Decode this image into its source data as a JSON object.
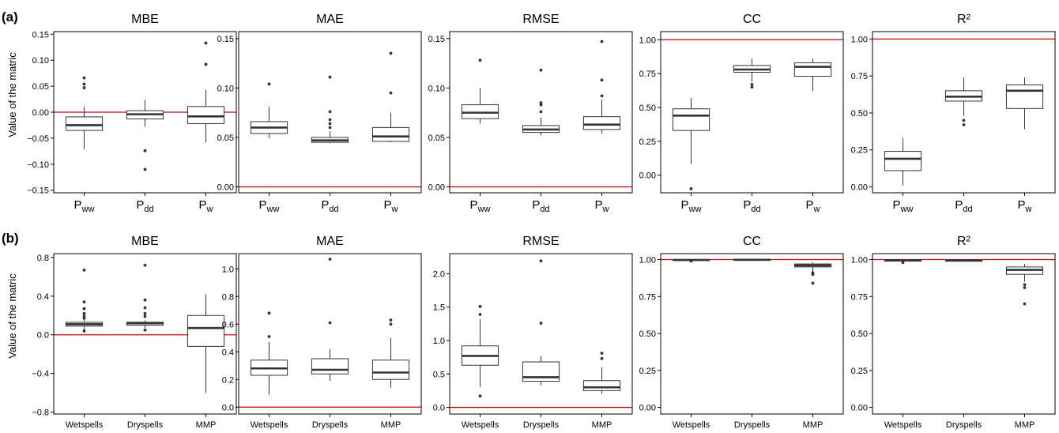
{
  "figure": {
    "row_labels": [
      "(a)",
      "(b)"
    ],
    "ylabel": "Value of the matric"
  },
  "chart_data": [
    {
      "type": "box",
      "row": "(a)",
      "title": "MBE",
      "categories": [
        "P_ww",
        "P_dd",
        "P_w"
      ],
      "ylim": [
        -0.155,
        0.155
      ],
      "yticks": [
        -0.15,
        -0.1,
        -0.05,
        0.0,
        0.05,
        0.1,
        0.15
      ],
      "ytick_labels": [
        "−0.15",
        "−0.10",
        "−0.05",
        "0.00",
        "0.05",
        "0.10",
        "0.15"
      ],
      "reference_line": 0,
      "boxes": [
        {
          "lower_whisker": -0.071,
          "q1": -0.035,
          "median": -0.025,
          "q3": -0.009,
          "upper_whisker": 0.01,
          "outliers": [
            0.047,
            0.054,
            0.066
          ]
        },
        {
          "lower_whisker": -0.028,
          "q1": -0.013,
          "median": -0.004,
          "q3": 0.003,
          "upper_whisker": 0.024,
          "outliers": [
            -0.074,
            -0.11
          ]
        },
        {
          "lower_whisker": -0.058,
          "q1": -0.022,
          "median": -0.008,
          "q3": 0.011,
          "upper_whisker": 0.043,
          "outliers": [
            0.092,
            0.133
          ]
        }
      ]
    },
    {
      "type": "box",
      "row": "(a)",
      "title": "MAE",
      "categories": [
        "P_ww",
        "P_dd",
        "P_w"
      ],
      "ylim": [
        -0.006,
        0.157
      ],
      "yticks": [
        0.0,
        0.05,
        0.1,
        0.15
      ],
      "ytick_labels": [
        "0.00",
        "0.05",
        "0.10",
        "0.15"
      ],
      "reference_line": 0,
      "boxes": [
        {
          "lower_whisker": 0.049,
          "q1": 0.054,
          "median": 0.06,
          "q3": 0.066,
          "upper_whisker": 0.081,
          "outliers": [
            0.104
          ]
        },
        {
          "lower_whisker": 0.044,
          "q1": 0.045,
          "median": 0.047,
          "q3": 0.05,
          "upper_whisker": 0.056,
          "outliers": [
            0.06,
            0.064,
            0.068,
            0.076,
            0.111
          ]
        },
        {
          "lower_whisker": 0.045,
          "q1": 0.046,
          "median": 0.051,
          "q3": 0.06,
          "upper_whisker": 0.075,
          "outliers": [
            0.095,
            0.135
          ]
        }
      ]
    },
    {
      "type": "box",
      "row": "(a)",
      "title": "RMSE",
      "categories": [
        "P_ww",
        "P_dd",
        "P_w"
      ],
      "ylim": [
        -0.006,
        0.157
      ],
      "yticks": [
        0.0,
        0.05,
        0.1,
        0.15
      ],
      "ytick_labels": [
        "0.00",
        "0.05",
        "0.10",
        "0.15"
      ],
      "reference_line": 0,
      "boxes": [
        {
          "lower_whisker": 0.064,
          "q1": 0.069,
          "median": 0.075,
          "q3": 0.083,
          "upper_whisker": 0.1,
          "outliers": [
            0.128
          ]
        },
        {
          "lower_whisker": 0.052,
          "q1": 0.055,
          "median": 0.058,
          "q3": 0.062,
          "upper_whisker": 0.07,
          "outliers": [
            0.076,
            0.083,
            0.085,
            0.118
          ]
        },
        {
          "lower_whisker": 0.054,
          "q1": 0.058,
          "median": 0.063,
          "q3": 0.071,
          "upper_whisker": 0.088,
          "outliers": [
            0.092,
            0.108,
            0.147
          ]
        }
      ]
    },
    {
      "type": "box",
      "row": "(a)",
      "title": "CC",
      "categories": [
        "P_ww",
        "P_dd",
        "P_w"
      ],
      "ylim": [
        -0.13,
        1.06
      ],
      "yticks": [
        0.0,
        0.25,
        0.5,
        0.75,
        1.0
      ],
      "ytick_labels": [
        "0.00",
        "0.25",
        "0.50",
        "0.75",
        "1.00"
      ],
      "reference_line": 1,
      "boxes": [
        {
          "lower_whisker": 0.08,
          "q1": 0.33,
          "median": 0.44,
          "q3": 0.49,
          "upper_whisker": 0.57,
          "outliers": [
            -0.1
          ]
        },
        {
          "lower_whisker": 0.69,
          "q1": 0.76,
          "median": 0.78,
          "q3": 0.81,
          "upper_whisker": 0.86,
          "outliers": [
            0.65,
            0.67
          ]
        },
        {
          "lower_whisker": 0.62,
          "q1": 0.73,
          "median": 0.8,
          "q3": 0.83,
          "upper_whisker": 0.86,
          "outliers": []
        }
      ]
    },
    {
      "type": "box",
      "row": "(a)",
      "title": "R²",
      "categories": [
        "P_ww",
        "P_dd",
        "P_w"
      ],
      "ylim": [
        -0.04,
        1.05
      ],
      "yticks": [
        0.0,
        0.25,
        0.5,
        0.75,
        1.0
      ],
      "ytick_labels": [
        "0.00",
        "0.25",
        "0.50",
        "0.75",
        "1.00"
      ],
      "reference_line": 1,
      "boxes": [
        {
          "lower_whisker": 0.01,
          "q1": 0.11,
          "median": 0.19,
          "q3": 0.24,
          "upper_whisker": 0.33,
          "outliers": []
        },
        {
          "lower_whisker": 0.48,
          "q1": 0.58,
          "median": 0.61,
          "q3": 0.65,
          "upper_whisker": 0.74,
          "outliers": [
            0.42,
            0.45
          ]
        },
        {
          "lower_whisker": 0.39,
          "q1": 0.53,
          "median": 0.65,
          "q3": 0.69,
          "upper_whisker": 0.74,
          "outliers": []
        }
      ]
    },
    {
      "type": "box",
      "row": "(b)",
      "title": "MBE",
      "categories": [
        "Wetspells",
        "Dryspells",
        "MMP"
      ],
      "ylim": [
        -0.82,
        0.84
      ],
      "yticks": [
        -0.8,
        -0.4,
        0.0,
        0.4,
        0.8
      ],
      "ytick_labels": [
        "−0.8",
        "−0.4",
        "0.0",
        "0.4",
        "0.8"
      ],
      "reference_line": 0,
      "boxes": [
        {
          "lower_whisker": 0.05,
          "q1": 0.09,
          "median": 0.11,
          "q3": 0.13,
          "upper_whisker": 0.15,
          "outliers": [
            0.04,
            0.17,
            0.19,
            0.22,
            0.27,
            0.34,
            0.67
          ]
        },
        {
          "lower_whisker": 0.07,
          "q1": 0.1,
          "median": 0.12,
          "q3": 0.13,
          "upper_whisker": 0.15,
          "outliers": [
            0.05,
            0.19,
            0.22,
            0.28,
            0.36,
            0.72
          ]
        },
        {
          "lower_whisker": -0.6,
          "q1": -0.12,
          "median": 0.07,
          "q3": 0.2,
          "upper_whisker": 0.42,
          "outliers": []
        }
      ]
    },
    {
      "type": "box",
      "row": "(b)",
      "title": "MAE",
      "categories": [
        "Wetspells",
        "Dryspells",
        "MMP"
      ],
      "ylim": [
        -0.05,
        1.11
      ],
      "yticks": [
        0.0,
        0.2,
        0.4,
        0.6,
        0.8,
        1.0
      ],
      "ytick_labels": [
        "0.0",
        "0.2",
        "0.4",
        "0.6",
        "0.8",
        "1.0"
      ],
      "reference_line": 0,
      "boxes": [
        {
          "lower_whisker": 0.09,
          "q1": 0.23,
          "median": 0.28,
          "q3": 0.34,
          "upper_whisker": 0.47,
          "outliers": [
            0.51,
            0.68
          ]
        },
        {
          "lower_whisker": 0.19,
          "q1": 0.24,
          "median": 0.27,
          "q3": 0.35,
          "upper_whisker": 0.42,
          "outliers": [
            0.61,
            1.07
          ]
        },
        {
          "lower_whisker": 0.14,
          "q1": 0.2,
          "median": 0.25,
          "q3": 0.34,
          "upper_whisker": 0.5,
          "outliers": [
            0.6,
            0.63
          ]
        }
      ]
    },
    {
      "type": "box",
      "row": "(b)",
      "title": "RMSE",
      "categories": [
        "Wetspells",
        "Dryspells",
        "MMP"
      ],
      "ylim": [
        -0.1,
        2.3
      ],
      "yticks": [
        0.0,
        0.5,
        1.0,
        1.5,
        2.0
      ],
      "ytick_labels": [
        "0.0",
        "0.5",
        "1.0",
        "1.5",
        "2.0"
      ],
      "reference_line": 0,
      "boxes": [
        {
          "lower_whisker": 0.3,
          "q1": 0.63,
          "median": 0.77,
          "q3": 0.92,
          "upper_whisker": 1.32,
          "outliers": [
            0.17,
            1.39,
            1.51
          ]
        },
        {
          "lower_whisker": 0.33,
          "q1": 0.39,
          "median": 0.45,
          "q3": 0.68,
          "upper_whisker": 0.77,
          "outliers": [
            1.26,
            2.19
          ]
        },
        {
          "lower_whisker": 0.2,
          "q1": 0.25,
          "median": 0.3,
          "q3": 0.4,
          "upper_whisker": 0.6,
          "outliers": [
            0.73,
            0.81
          ]
        }
      ]
    },
    {
      "type": "box",
      "row": "(b)",
      "title": "CC",
      "categories": [
        "Wetspells",
        "Dryspells",
        "MMP"
      ],
      "ylim": [
        -0.045,
        1.04
      ],
      "yticks": [
        0.0,
        0.25,
        0.5,
        0.75,
        1.0
      ],
      "ytick_labels": [
        "0.00",
        "0.25",
        "0.50",
        "0.75",
        "1.00"
      ],
      "reference_line": 1,
      "boxes": [
        {
          "lower_whisker": 0.993,
          "q1": 0.995,
          "median": 0.997,
          "q3": 0.999,
          "upper_whisker": 1.0,
          "outliers": [
            0.99
          ]
        },
        {
          "lower_whisker": 0.994,
          "q1": 0.996,
          "median": 0.998,
          "q3": 0.999,
          "upper_whisker": 1.0,
          "outliers": []
        },
        {
          "lower_whisker": 0.92,
          "q1": 0.95,
          "median": 0.96,
          "q3": 0.97,
          "upper_whisker": 0.98,
          "outliers": [
            0.84,
            0.9,
            0.91
          ]
        }
      ]
    },
    {
      "type": "box",
      "row": "(b)",
      "title": "R²",
      "categories": [
        "Wetspells",
        "Dryspells",
        "MMP"
      ],
      "ylim": [
        -0.045,
        1.04
      ],
      "yticks": [
        0.0,
        0.25,
        0.5,
        0.75,
        1.0
      ],
      "ytick_labels": [
        "0.00",
        "0.25",
        "0.50",
        "0.75",
        "1.00"
      ],
      "reference_line": 1,
      "boxes": [
        {
          "lower_whisker": 0.985,
          "q1": 0.99,
          "median": 0.994,
          "q3": 0.997,
          "upper_whisker": 1.0,
          "outliers": [
            0.98
          ]
        },
        {
          "lower_whisker": 0.985,
          "q1": 0.99,
          "median": 0.993,
          "q3": 0.996,
          "upper_whisker": 1.0,
          "outliers": []
        },
        {
          "lower_whisker": 0.85,
          "q1": 0.9,
          "median": 0.93,
          "q3": 0.95,
          "upper_whisker": 0.97,
          "outliers": [
            0.7,
            0.81,
            0.83
          ]
        }
      ]
    }
  ],
  "style": {
    "box_stroke": "#333333",
    "median_color": "#333333",
    "reference_line_color": "#cc0000",
    "outlier_color": "#333333",
    "axis_color": "#000000"
  }
}
